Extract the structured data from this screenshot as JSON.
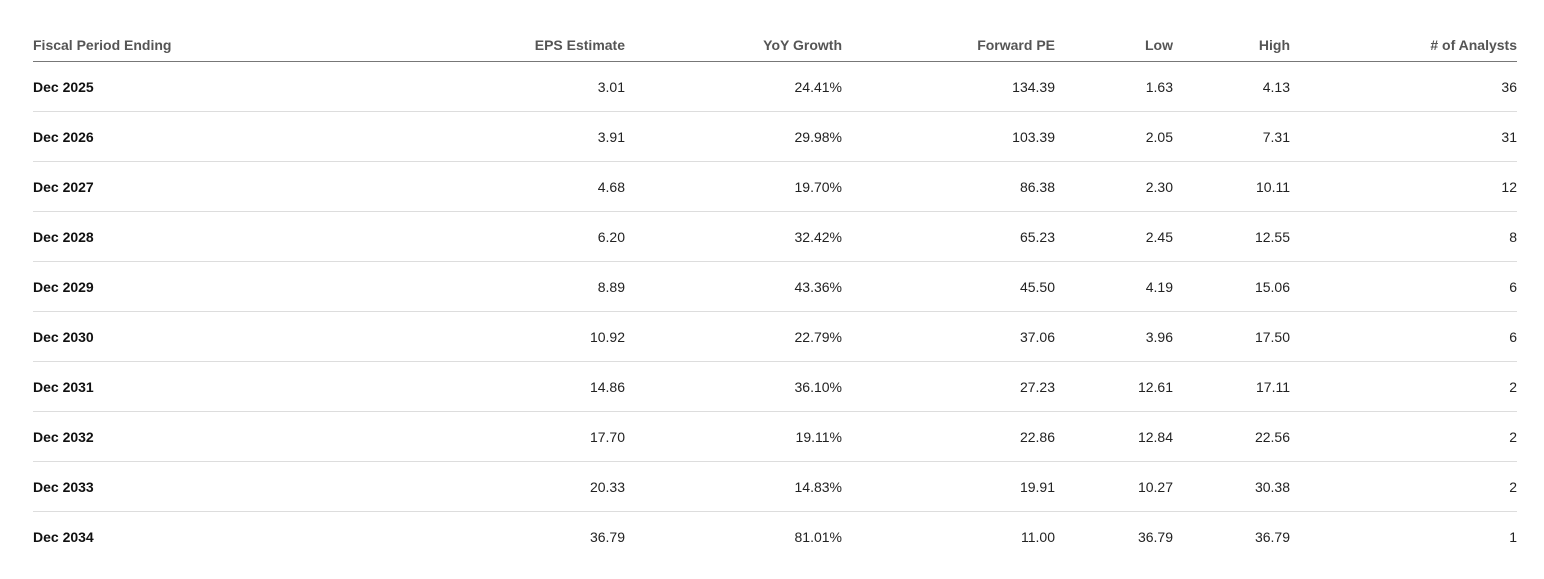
{
  "table": {
    "headers": [
      "Fiscal Period Ending",
      "EPS Estimate",
      "YoY Growth",
      "Forward PE",
      "Low",
      "High",
      "# of Analysts"
    ],
    "rows": [
      [
        "Dec 2025",
        "3.01",
        "24.41%",
        "134.39",
        "1.63",
        "4.13",
        "36"
      ],
      [
        "Dec 2026",
        "3.91",
        "29.98%",
        "103.39",
        "2.05",
        "7.31",
        "31"
      ],
      [
        "Dec 2027",
        "4.68",
        "19.70%",
        "86.38",
        "2.30",
        "10.11",
        "12"
      ],
      [
        "Dec 2028",
        "6.20",
        "32.42%",
        "65.23",
        "2.45",
        "12.55",
        "8"
      ],
      [
        "Dec 2029",
        "8.89",
        "43.36%",
        "45.50",
        "4.19",
        "15.06",
        "6"
      ],
      [
        "Dec 2030",
        "10.92",
        "22.79%",
        "37.06",
        "3.96",
        "17.50",
        "6"
      ],
      [
        "Dec 2031",
        "14.86",
        "36.10%",
        "27.23",
        "12.61",
        "17.11",
        "2"
      ],
      [
        "Dec 2032",
        "17.70",
        "19.11%",
        "22.86",
        "12.84",
        "22.56",
        "2"
      ],
      [
        "Dec 2033",
        "20.33",
        "14.83%",
        "19.91",
        "10.27",
        "30.38",
        "2"
      ],
      [
        "Dec 2034",
        "36.79",
        "81.01%",
        "11.00",
        "36.79",
        "36.79",
        "1"
      ]
    ]
  }
}
